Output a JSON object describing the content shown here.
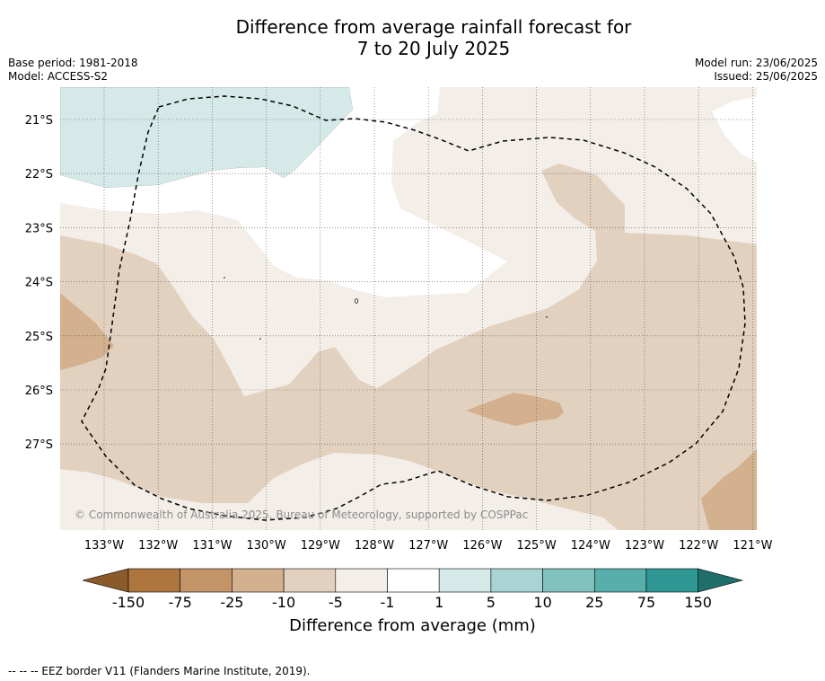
{
  "header": {
    "title_line1": "Difference from average rainfall forecast for",
    "title_line2": "7 to 20 July 2025",
    "base_period": "Base period: 1981-2018",
    "model": "Model: ACCESS-S2",
    "model_run": "Model run: 23/06/2025",
    "issued": "Issued: 25/06/2025"
  },
  "map": {
    "latitude_labels": [
      "21°S",
      "22°S",
      "23°S",
      "24°S",
      "25°S",
      "26°S",
      "27°S"
    ],
    "longitude_labels": [
      "133°W",
      "132°W",
      "131°W",
      "130°W",
      "129°W",
      "128°W",
      "127°W",
      "126°W",
      "125°W",
      "124°W",
      "123°W",
      "122°W",
      "121°W"
    ],
    "copyright": "© Commonwealth of Australia 2025, Bureau of Meteorology, supported by COSPPac",
    "colors": {
      "lt_-150": "#8b5a2b",
      "-150_-75": "#ad763e",
      "-75_-25": "#c29468",
      "-25_-10": "#d3b08e",
      "-10_-5": "#e3d1c0",
      "-5_-1": "#f4eee9",
      "-1_1": "#ffffff",
      "1_5": "#d4e9e8",
      "5_10": "#aad4d3",
      "10_25": "#80c1be",
      "25_75": "#57aeaa",
      "75_150": "#309894",
      "gt_150": "#1f6e6b"
    }
  },
  "colorbar": {
    "tick_labels": [
      "-150",
      "-75",
      "-25",
      "-10",
      "-5",
      "-1",
      "1",
      "5",
      "10",
      "25",
      "75",
      "150"
    ],
    "title": "Difference from average (mm)"
  },
  "footnote": "--  --  -- EEZ border V11 (Flanders Marine Institute, 2019)."
}
